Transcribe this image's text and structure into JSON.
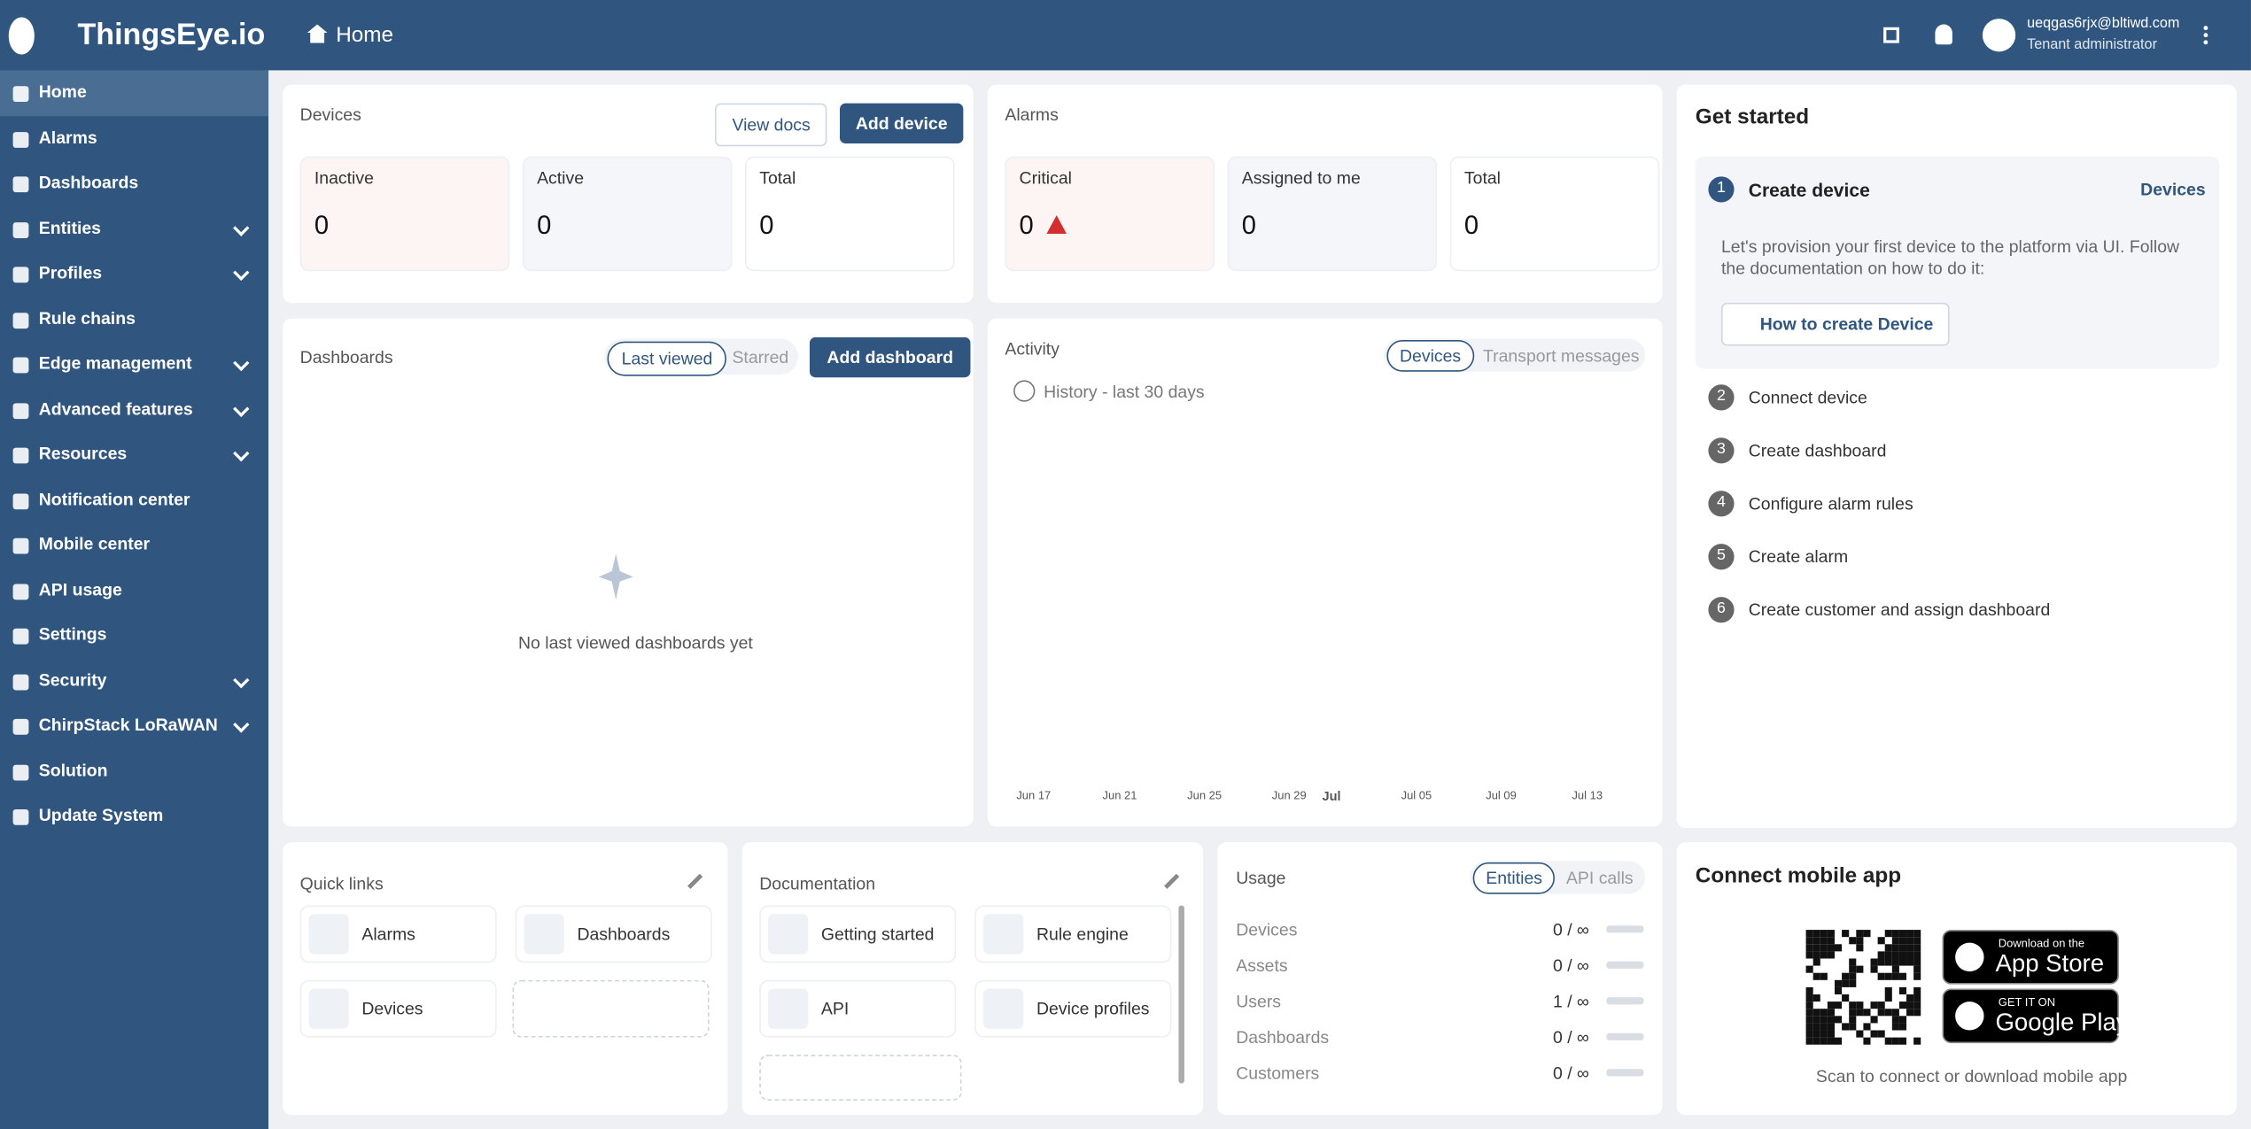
{
  "header": {
    "brand": "ThingsEye.io",
    "page": "Home",
    "user_email": "ueqgas6rjx@bltiwd.com",
    "user_role": "Tenant administrator"
  },
  "sidebar": {
    "items": [
      {
        "label": "Home",
        "active": true
      },
      {
        "label": "Alarms"
      },
      {
        "label": "Dashboards"
      },
      {
        "label": "Entities",
        "submenu": true
      },
      {
        "label": "Profiles",
        "submenu": true
      },
      {
        "label": "Rule chains"
      },
      {
        "label": "Edge management",
        "submenu": true
      },
      {
        "label": "Advanced features",
        "submenu": true
      },
      {
        "label": "Resources",
        "submenu": true
      },
      {
        "label": "Notification center"
      },
      {
        "label": "Mobile center"
      },
      {
        "label": "API usage"
      },
      {
        "label": "Settings"
      },
      {
        "label": "Security",
        "submenu": true
      },
      {
        "label": "ChirpStack LoRaWAN",
        "submenu": true
      },
      {
        "label": "Solution"
      },
      {
        "label": "Update System"
      }
    ]
  },
  "devices": {
    "title": "Devices",
    "buttons": [
      "View docs",
      "Add device"
    ],
    "stats": [
      {
        "label": "Inactive",
        "value": 0
      },
      {
        "label": "Active",
        "value": 0
      },
      {
        "label": "Total",
        "value": 0
      }
    ]
  },
  "alarms": {
    "title": "Alarms",
    "stats": [
      {
        "label": "Critical",
        "value": 0
      },
      {
        "label": "Assigned to me",
        "value": 0
      },
      {
        "label": "Total",
        "value": 0
      }
    ]
  },
  "dashboards": {
    "title": "Dashboards",
    "toggles": [
      "Last viewed",
      "Starred"
    ],
    "button": "Add dashboard",
    "empty": "No last viewed dashboards yet"
  },
  "activity": {
    "title": "Activity",
    "toggles": [
      "Devices",
      "Transport messages"
    ],
    "history": "History - last 30 days",
    "x_labels": [
      "Jun 17",
      "Jun 21",
      "Jun 25",
      "Jun 29",
      "Jul",
      "Jul 05",
      "Jul 09",
      "Jul 13"
    ]
  },
  "get_started": {
    "title": "Get started",
    "link": "Devices",
    "description": "Let's provision your first device to the platform via UI. Follow the documentation on how to do it:",
    "button": "How to create Device",
    "steps": [
      {
        "num": 1,
        "label": "Create device"
      },
      {
        "num": 2,
        "label": "Connect device"
      },
      {
        "num": 3,
        "label": "Create dashboard"
      },
      {
        "num": 4,
        "label": "Configure alarm rules"
      },
      {
        "num": 5,
        "label": "Create alarm"
      },
      {
        "num": 6,
        "label": "Create customer and assign dashboard"
      }
    ]
  },
  "quick_links": {
    "title": "Quick links",
    "items": [
      "Alarms",
      "Dashboards",
      "Devices"
    ]
  },
  "documentation": {
    "title": "Documentation",
    "items": [
      "Getting started",
      "Rule engine",
      "API",
      "Device profiles"
    ]
  },
  "usage": {
    "title": "Usage",
    "toggles": [
      "Entities",
      "API calls"
    ],
    "rows": [
      {
        "label": "Devices",
        "value": "0 / ∞"
      },
      {
        "label": "Assets",
        "value": "0 / ∞"
      },
      {
        "label": "Users",
        "value": "1 / ∞"
      },
      {
        "label": "Dashboards",
        "value": "0 / ∞"
      },
      {
        "label": "Customers",
        "value": "0 / ∞"
      }
    ]
  },
  "mobile": {
    "title": "Connect mobile app",
    "app_store": {
      "small": "Download on the",
      "big": "App Store"
    },
    "google_play": {
      "small": "GET IT ON",
      "big": "Google Play"
    },
    "caption": "Scan to connect or download mobile app"
  }
}
